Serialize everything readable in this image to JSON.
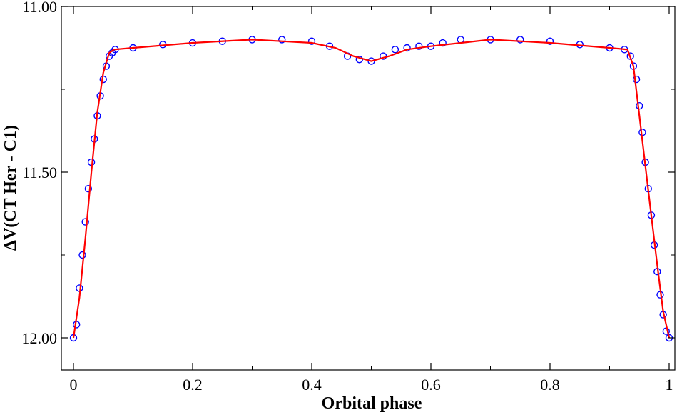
{
  "chart_data": {
    "type": "scatter",
    "xlabel": "Orbital phase",
    "ylabel": "ΔV(CT Her - C1)",
    "xlim": [
      0,
      1
    ],
    "ylim": [
      12.08,
      11.0
    ],
    "y_inverted": true,
    "grid": false,
    "legend": "none",
    "x_ticks": [
      {
        "value": 0,
        "label": "0"
      },
      {
        "value": 0.2,
        "label": "0.2"
      },
      {
        "value": 0.4,
        "label": "0.4"
      },
      {
        "value": 0.6,
        "label": "0.6"
      },
      {
        "value": 0.8,
        "label": "0.8"
      },
      {
        "value": 1.0,
        "label": "1"
      }
    ],
    "y_ticks": [
      {
        "value": 11.0,
        "label": "11.00"
      },
      {
        "value": 11.5,
        "label": "11.50"
      },
      {
        "value": 12.0,
        "label": "12.00"
      }
    ],
    "series": [
      {
        "kind": "observations",
        "marker": "open-circle",
        "color": "#0000ff",
        "x": [
          0.0,
          0.005,
          0.01,
          0.015,
          0.02,
          0.025,
          0.03,
          0.035,
          0.04,
          0.045,
          0.05,
          0.055,
          0.06,
          0.065,
          0.07,
          0.1,
          0.15,
          0.2,
          0.25,
          0.3,
          0.35,
          0.4,
          0.43,
          0.46,
          0.48,
          0.5,
          0.52,
          0.54,
          0.56,
          0.58,
          0.6,
          0.62,
          0.65,
          0.7,
          0.75,
          0.8,
          0.85,
          0.9,
          0.925,
          0.935,
          0.94,
          0.945,
          0.95,
          0.955,
          0.96,
          0.965,
          0.97,
          0.975,
          0.98,
          0.985,
          0.99,
          0.995,
          1.0
        ],
        "y": [
          12.0,
          11.96,
          11.85,
          11.75,
          11.65,
          11.55,
          11.47,
          11.4,
          11.33,
          11.27,
          11.22,
          11.18,
          11.15,
          11.14,
          11.13,
          11.125,
          11.115,
          11.11,
          11.105,
          11.1,
          11.1,
          11.105,
          11.12,
          11.15,
          11.16,
          11.165,
          11.15,
          11.13,
          11.125,
          11.12,
          11.12,
          11.11,
          11.1,
          11.1,
          11.1,
          11.105,
          11.115,
          11.125,
          11.13,
          11.15,
          11.18,
          11.22,
          11.3,
          11.38,
          11.47,
          11.55,
          11.63,
          11.72,
          11.8,
          11.87,
          11.93,
          11.98,
          12.0
        ]
      },
      {
        "kind": "model-fit",
        "marker": "line",
        "color": "#ff0000",
        "x": [
          0.0,
          0.01,
          0.02,
          0.03,
          0.04,
          0.05,
          0.06,
          0.068,
          0.1,
          0.2,
          0.3,
          0.4,
          0.44,
          0.47,
          0.5,
          0.53,
          0.56,
          0.6,
          0.7,
          0.8,
          0.9,
          0.93,
          0.94,
          0.95,
          0.96,
          0.97,
          0.98,
          0.99,
          1.0
        ],
        "y": [
          12.0,
          11.88,
          11.7,
          11.5,
          11.32,
          11.2,
          11.14,
          11.13,
          11.125,
          11.11,
          11.1,
          11.11,
          11.125,
          11.15,
          11.165,
          11.15,
          11.13,
          11.12,
          11.1,
          11.11,
          11.125,
          11.13,
          11.18,
          11.33,
          11.48,
          11.63,
          11.78,
          11.92,
          12.0
        ]
      }
    ]
  }
}
